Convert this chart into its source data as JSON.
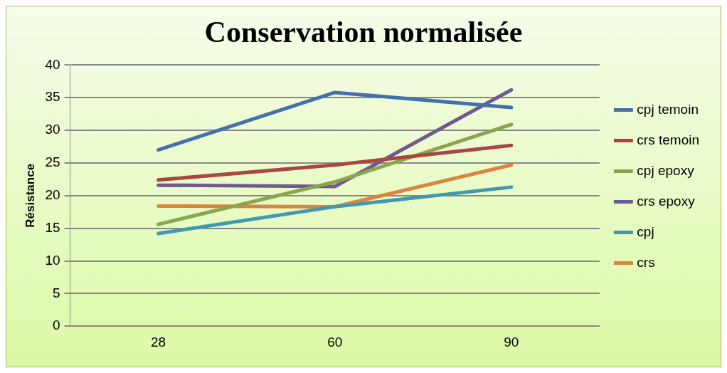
{
  "chart_data": {
    "type": "line",
    "title": "Conservation normalisée",
    "ylabel": "Résistance",
    "categories": [
      "28",
      "60",
      "90"
    ],
    "series": [
      {
        "name": "cpj temoin",
        "color": "#4470ab",
        "values": [
          27.0,
          35.8,
          33.5
        ]
      },
      {
        "name": "crs temoin",
        "color": "#aa4543",
        "values": [
          22.4,
          24.7,
          27.7
        ]
      },
      {
        "name": "cpj epoxy",
        "color": "#89a54e",
        "values": [
          15.6,
          22.1,
          30.9
        ]
      },
      {
        "name": "crs epoxy",
        "color": "#71588f",
        "values": [
          21.6,
          21.4,
          36.2
        ]
      },
      {
        "name": "cpj",
        "color": "#4198af",
        "values": [
          14.2,
          18.3,
          21.3
        ]
      },
      {
        "name": "crs",
        "color": "#db843d",
        "values": [
          18.4,
          18.3,
          24.7
        ]
      }
    ],
    "ylim": [
      0,
      40
    ],
    "yticks": [
      0,
      5,
      10,
      15,
      20,
      25,
      30,
      35,
      40
    ],
    "grid": "y",
    "legend": "right",
    "marker": "none",
    "line_style": "solid"
  }
}
